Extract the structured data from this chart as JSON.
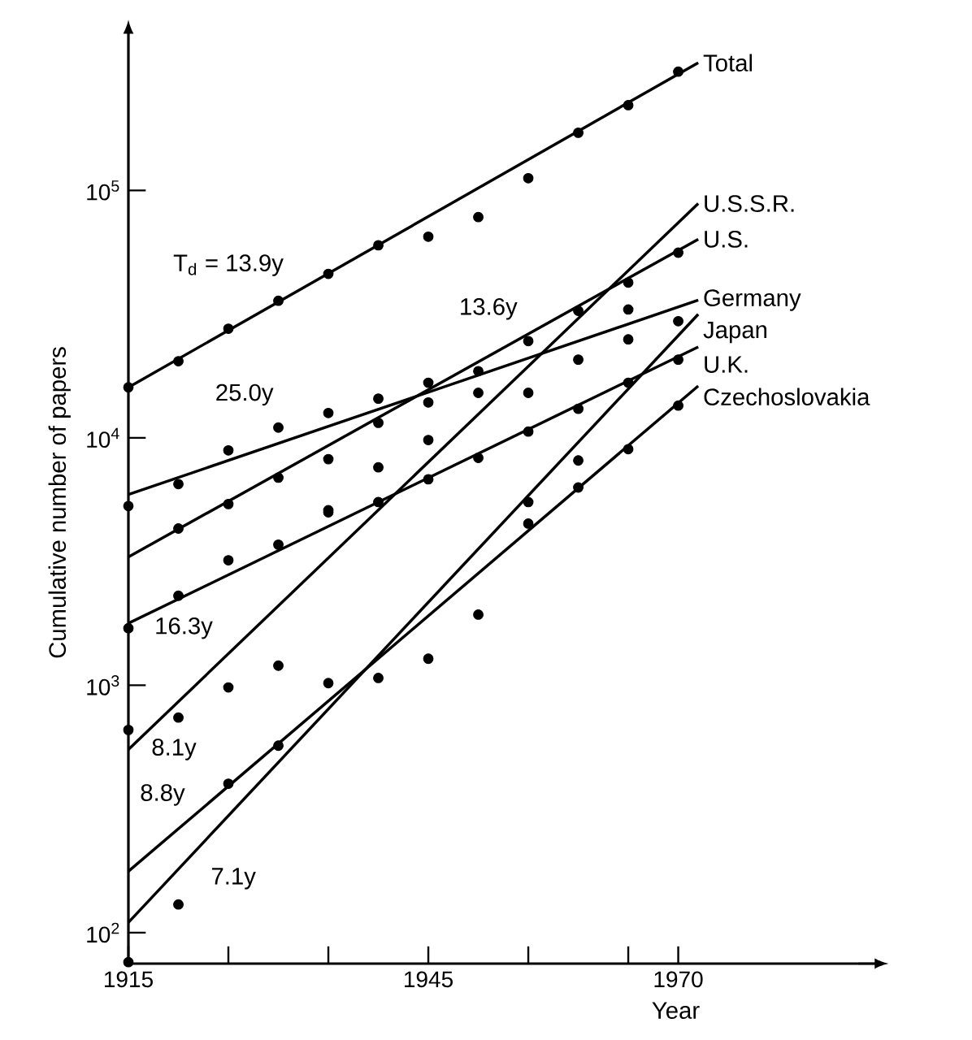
{
  "chart_data": {
    "type": "line",
    "xlabel": "Year",
    "ylabel": "Cumulative number of papers",
    "xlim": [
      1915,
      1988
    ],
    "ylim": [
      75,
      400000
    ],
    "log": "y",
    "xticks": [
      1915,
      {
        "value": 1925,
        "label": null
      },
      {
        "value": 1935,
        "label": null
      },
      1945,
      {
        "value": 1955,
        "label": null
      },
      {
        "value": 1965,
        "label": null
      },
      1970
    ],
    "yticks": [
      {
        "value": 100,
        "label": "10$^{2}$"
      },
      {
        "value": 1000,
        "label": "10$^{3}$"
      },
      {
        "value": 10000,
        "label": "10$^{4}$"
      },
      {
        "value": 100000,
        "label": "10$^{5}$"
      }
    ],
    "series": [
      {
        "name": "Total",
        "color": "#000000",
        "line_style": "solid",
        "x": [
          1915,
          1972
        ],
        "values": [
          16000,
          328000
        ]
      },
      {
        "name": "U.S.S.R.",
        "color": "#000000",
        "line_style": "solid",
        "x": [
          1915,
          1972
        ],
        "values": [
          550,
          88500
        ]
      },
      {
        "name": "U.S.",
        "color": "#000000",
        "line_style": "solid",
        "x": [
          1915,
          1972
        ],
        "values": [
          3300,
          63500
        ]
      },
      {
        "name": "Germany",
        "color": "#000000",
        "line_style": "solid",
        "x": [
          1915,
          1972
        ],
        "values": [
          5900,
          36000
        ]
      },
      {
        "name": "Japan",
        "color": "#000000",
        "line_style": "solid",
        "x": [
          1915,
          1972
        ],
        "values": [
          110,
          31600
        ]
      },
      {
        "name": "U.K.",
        "color": "#000000",
        "line_style": "solid",
        "x": [
          1915,
          1972
        ],
        "values": [
          1780,
          23300
        ]
      },
      {
        "name": "Czechoslovakia",
        "color": "#000000",
        "line_style": "solid",
        "x": [
          1915,
          1972
        ],
        "values": [
          177,
          16200
        ]
      },
      {
        "type": "scatter",
        "color": "#000000",
        "marker": "circle",
        "x": [
          1915,
          1920,
          1925,
          1930,
          1935,
          1940,
          1945,
          1950,
          1955,
          1960,
          1965,
          1970,
          1915,
          1920,
          1925,
          1930,
          1935,
          1940,
          1945,
          1950,
          1955,
          1960,
          1965,
          1970,
          1920,
          1925,
          1930,
          1935,
          1940,
          1945,
          1950,
          1955,
          1960,
          1965,
          1970,
          1915,
          1920,
          1925,
          1930,
          1935,
          1940,
          1945,
          1950,
          1955,
          1960,
          1965,
          1970,
          1915,
          1920,
          1925,
          1930,
          1935,
          1940,
          1945,
          1950,
          1915,
          1920,
          1925,
          1930,
          1955,
          1955,
          1960,
          1960,
          1965,
          1970,
          1965,
          1935,
          1940,
          1945
        ],
        "values": [
          16000,
          20400,
          27600,
          35800,
          46000,
          60000,
          65000,
          78000,
          112000,
          171000,
          221000,
          302000,
          5300,
          6500,
          8900,
          11000,
          12600,
          14400,
          16700,
          15200,
          15200,
          20700,
          25000,
          29600,
          4300,
          5400,
          6900,
          8200,
          11500,
          13900,
          18600,
          24600,
          32600,
          42400,
          56000,
          1700,
          2300,
          3200,
          3700,
          5100,
          5500,
          6800,
          8300,
          10600,
          13100,
          16700,
          20700,
          660,
          740,
          980,
          1200,
          1020,
          1070,
          1280,
          1930,
          76,
          130,
          400,
          570,
          5500,
          4500,
          8100,
          6300,
          9000,
          13500,
          33000,
          5000,
          7600,
          9800
        ]
      }
    ],
    "annotations": [
      {
        "text": "T$_{d}$ = 13.9y",
        "x": 1925,
        "y": 27200
      },
      {
        "text": "13.6y",
        "x": 1951,
        "y": 21400
      },
      {
        "text": "25.0y",
        "x": 1926.6,
        "y": 8530
      },
      {
        "text": "16.3y",
        "x": 1915,
        "y": 1780
      },
      {
        "text": "8.1y",
        "x": 1915,
        "y": 550
      },
      {
        "text": "8.8y",
        "x": 1915,
        "y": 177
      },
      {
        "text": "7.1y",
        "x": 1925.5,
        "y": 312
      }
    ]
  }
}
